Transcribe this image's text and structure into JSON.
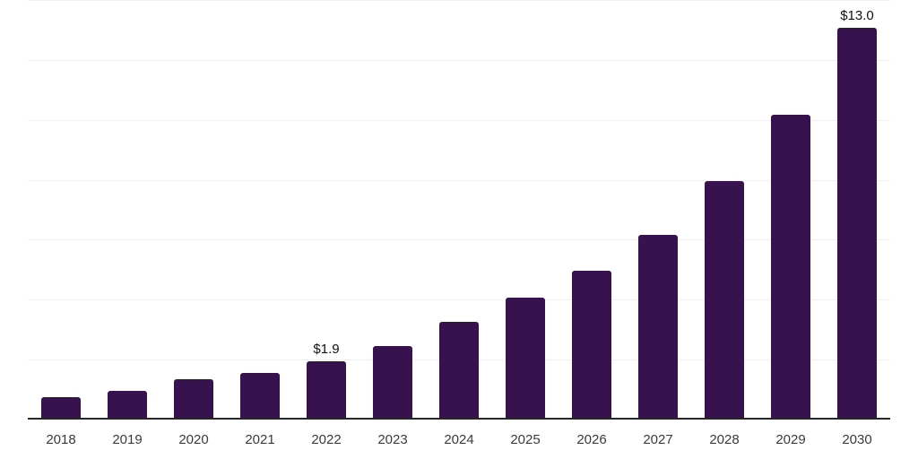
{
  "chart_data": {
    "type": "bar",
    "title": "",
    "xlabel": "",
    "ylabel": "",
    "categories": [
      "2018",
      "2019",
      "2020",
      "2021",
      "2022",
      "2023",
      "2024",
      "2025",
      "2026",
      "2027",
      "2028",
      "2029",
      "2030"
    ],
    "values": [
      0.7,
      0.9,
      1.3,
      1.5,
      1.9,
      2.4,
      3.2,
      4.0,
      4.9,
      6.1,
      7.9,
      10.1,
      13.0
    ],
    "data_labels": [
      "",
      "",
      "",
      "",
      "$1.9",
      "",
      "",
      "",
      "",
      "",
      "",
      "",
      "$13.0"
    ],
    "ylim": [
      0,
      14
    ],
    "gridline_step": 2,
    "grid": "horizontal, no y-axis tick labels",
    "legend": "none",
    "colors": {
      "bar": "#37124e",
      "axis_line": "#262626",
      "gridline": "#f0f0f0",
      "tick_label": "#3a3a3a",
      "data_label": "#111111",
      "background": "#ffffff"
    }
  }
}
